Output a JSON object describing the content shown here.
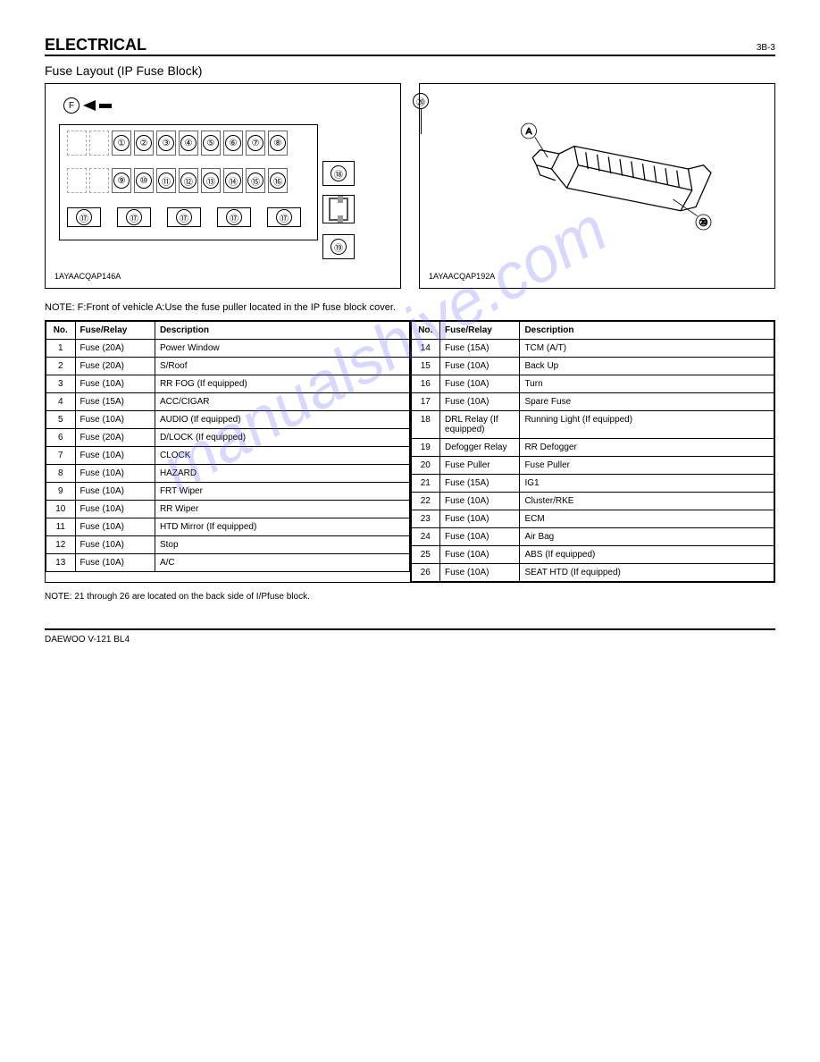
{
  "header": {
    "title": "ELECTRICAL",
    "sub": "3B-3"
  },
  "section": {
    "title": "Fuse Layout (IP Fuse Block)"
  },
  "diagram1": {
    "id": "1AYAACQAP146A",
    "f_label": "F",
    "slots_row1": [
      "①",
      "②",
      "③",
      "④",
      "⑤",
      "⑥",
      "⑦",
      "⑧"
    ],
    "slots_row2": [
      "⑨",
      "⑩",
      "⑪",
      "⑫",
      "⑬",
      "⑭",
      "⑮",
      "⑯"
    ],
    "slots_row3": [
      "⑰",
      "⑰",
      "⑰",
      "⑰",
      "⑰"
    ],
    "side18": "⑱",
    "side19": "⑲",
    "side20": "⑳"
  },
  "diagram2": {
    "id": "1AYAACQAP192A",
    "label_a": "A",
    "label_20": "⑳"
  },
  "note": "NOTE:   F:Front of vehicle   A:Use the fuse puller located in the IP fuse block cover.",
  "table": {
    "headers": [
      "No.",
      "Fuse/Relay",
      "Description"
    ],
    "left": [
      [
        "1",
        "Fuse (20A)",
        "Power Window"
      ],
      [
        "2",
        "Fuse (20A)",
        "S/Roof"
      ],
      [
        "3",
        "Fuse (10A)",
        "RR FOG (If equipped)"
      ],
      [
        "4",
        "Fuse (15A)",
        "ACC/CIGAR"
      ],
      [
        "5",
        "Fuse (10A)",
        "AUDIO (If equipped)"
      ],
      [
        "6",
        "Fuse (20A)",
        "D/LOCK (If equipped)"
      ],
      [
        "7",
        "Fuse (10A)",
        "CLOCK"
      ],
      [
        "8",
        "Fuse (10A)",
        "HAZARD"
      ],
      [
        "9",
        "Fuse (10A)",
        "FRT Wiper"
      ],
      [
        "10",
        "Fuse (10A)",
        "RR Wiper"
      ],
      [
        "11",
        "Fuse (10A)",
        "HTD Mirror (If equipped)"
      ],
      [
        "12",
        "Fuse (10A)",
        "Stop"
      ],
      [
        "13",
        "Fuse (10A)",
        "A/C"
      ]
    ],
    "right": [
      [
        "14",
        "Fuse (15A)",
        "TCM (A/T)"
      ],
      [
        "15",
        "Fuse (10A)",
        "Back Up"
      ],
      [
        "16",
        "Fuse (10A)",
        "Turn"
      ],
      [
        "17",
        "Fuse (10A)",
        "Spare Fuse"
      ],
      [
        "18",
        "DRL Relay (If equipped)",
        "Running Light (If equipped)"
      ],
      [
        "19",
        "Defogger Relay",
        "RR Defogger"
      ],
      [
        "20",
        "Fuse Puller",
        "Fuse Puller"
      ],
      [
        "21",
        "Fuse (15A)",
        "IG1"
      ],
      [
        "22",
        "Fuse (10A)",
        "Cluster/RKE"
      ],
      [
        "23",
        "Fuse (10A)",
        "ECM"
      ],
      [
        "24",
        "Fuse (10A)",
        "Air Bag"
      ],
      [
        "25",
        "Fuse (10A)",
        "ABS (If equipped)"
      ],
      [
        "26",
        "Fuse (10A)",
        "SEAT HTD (If equipped)"
      ]
    ]
  },
  "postnote": "NOTE: 21 through 26 are located on the back side of I/Pfuse block.",
  "footer": {
    "left": "DAEWOO V-121 BL4",
    "right": ""
  },
  "watermark": "manualshive.com"
}
